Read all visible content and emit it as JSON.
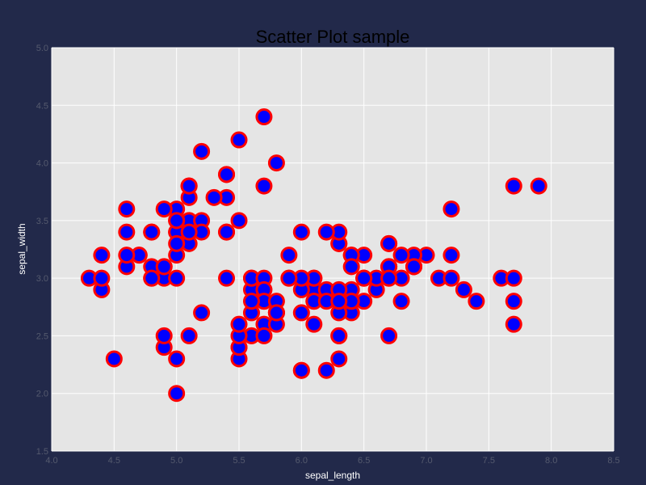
{
  "chart_data": {
    "type": "scatter",
    "title": "Scatter Plot sample",
    "xlabel": "sepal_length",
    "ylabel": "sepal_width",
    "xlim": [
      4.0,
      8.5
    ],
    "ylim": [
      1.5,
      5.0
    ],
    "x_ticks": [
      "4.0",
      "4.5",
      "5.0",
      "5.5",
      "6.0",
      "6.5",
      "7.0",
      "7.5",
      "8.0",
      "8.5"
    ],
    "y_ticks": [
      "1.5",
      "2.0",
      "2.5",
      "3.0",
      "3.5",
      "4.0",
      "4.5",
      "5.0"
    ],
    "grid": true,
    "marker": {
      "fill": "#0000ff",
      "edge": "#ff0000"
    },
    "colors": {
      "figure_bg": "#22294a",
      "plot_bg": "#e5e5e5",
      "grid": "#ffffff",
      "tick_text": "#555a6e",
      "axis_text": "#ffffff"
    },
    "points": [
      [
        5.1,
        3.5
      ],
      [
        4.9,
        3.0
      ],
      [
        4.7,
        3.2
      ],
      [
        4.6,
        3.1
      ],
      [
        5.0,
        3.6
      ],
      [
        5.4,
        3.9
      ],
      [
        4.6,
        3.4
      ],
      [
        5.0,
        3.4
      ],
      [
        4.4,
        2.9
      ],
      [
        4.9,
        3.1
      ],
      [
        5.4,
        3.7
      ],
      [
        4.8,
        3.4
      ],
      [
        4.8,
        3.0
      ],
      [
        4.3,
        3.0
      ],
      [
        5.8,
        4.0
      ],
      [
        5.7,
        4.4
      ],
      [
        5.4,
        3.9
      ],
      [
        5.1,
        3.5
      ],
      [
        5.7,
        3.8
      ],
      [
        5.1,
        3.8
      ],
      [
        5.4,
        3.4
      ],
      [
        5.1,
        3.7
      ],
      [
        4.6,
        3.6
      ],
      [
        5.1,
        3.3
      ],
      [
        4.8,
        3.4
      ],
      [
        5.0,
        3.0
      ],
      [
        5.0,
        3.4
      ],
      [
        5.2,
        3.5
      ],
      [
        5.2,
        3.4
      ],
      [
        4.7,
        3.2
      ],
      [
        4.8,
        3.1
      ],
      [
        5.4,
        3.4
      ],
      [
        5.2,
        4.1
      ],
      [
        5.5,
        4.2
      ],
      [
        4.9,
        3.1
      ],
      [
        5.0,
        3.2
      ],
      [
        5.5,
        3.5
      ],
      [
        4.9,
        3.6
      ],
      [
        4.4,
        3.0
      ],
      [
        5.1,
        3.4
      ],
      [
        5.0,
        3.5
      ],
      [
        4.5,
        2.3
      ],
      [
        4.4,
        3.2
      ],
      [
        5.0,
        3.5
      ],
      [
        5.1,
        3.8
      ],
      [
        4.8,
        3.0
      ],
      [
        5.1,
        3.8
      ],
      [
        4.6,
        3.2
      ],
      [
        5.3,
        3.7
      ],
      [
        5.0,
        3.3
      ],
      [
        7.0,
        3.2
      ],
      [
        6.4,
        3.2
      ],
      [
        6.9,
        3.1
      ],
      [
        5.5,
        2.3
      ],
      [
        6.5,
        2.8
      ],
      [
        5.7,
        2.8
      ],
      [
        6.3,
        3.3
      ],
      [
        4.9,
        2.4
      ],
      [
        6.6,
        2.9
      ],
      [
        5.2,
        2.7
      ],
      [
        5.0,
        2.0
      ],
      [
        5.9,
        3.0
      ],
      [
        6.0,
        2.2
      ],
      [
        6.1,
        2.9
      ],
      [
        5.6,
        2.9
      ],
      [
        6.7,
        3.1
      ],
      [
        5.6,
        3.0
      ],
      [
        5.8,
        2.7
      ],
      [
        6.2,
        2.2
      ],
      [
        5.6,
        2.5
      ],
      [
        5.9,
        3.2
      ],
      [
        6.1,
        2.8
      ],
      [
        6.3,
        2.5
      ],
      [
        6.1,
        2.8
      ],
      [
        6.4,
        2.9
      ],
      [
        6.6,
        3.0
      ],
      [
        6.8,
        2.8
      ],
      [
        6.7,
        3.0
      ],
      [
        6.0,
        2.9
      ],
      [
        5.7,
        2.6
      ],
      [
        5.5,
        2.4
      ],
      [
        5.5,
        2.4
      ],
      [
        5.8,
        2.7
      ],
      [
        6.0,
        2.7
      ],
      [
        5.4,
        3.0
      ],
      [
        6.0,
        3.4
      ],
      [
        6.7,
        3.1
      ],
      [
        6.3,
        2.3
      ],
      [
        5.6,
        3.0
      ],
      [
        5.5,
        2.5
      ],
      [
        5.5,
        2.6
      ],
      [
        6.1,
        3.0
      ],
      [
        5.8,
        2.6
      ],
      [
        5.0,
        2.3
      ],
      [
        5.6,
        2.7
      ],
      [
        5.7,
        3.0
      ],
      [
        5.7,
        2.9
      ],
      [
        6.2,
        2.9
      ],
      [
        5.1,
        2.5
      ],
      [
        5.7,
        2.8
      ],
      [
        6.3,
        3.3
      ],
      [
        5.8,
        2.7
      ],
      [
        7.1,
        3.0
      ],
      [
        6.3,
        2.9
      ],
      [
        6.5,
        3.0
      ],
      [
        7.6,
        3.0
      ],
      [
        4.9,
        2.5
      ],
      [
        7.3,
        2.9
      ],
      [
        6.7,
        2.5
      ],
      [
        7.2,
        3.6
      ],
      [
        6.5,
        3.2
      ],
      [
        6.4,
        2.7
      ],
      [
        6.8,
        3.0
      ],
      [
        5.7,
        2.5
      ],
      [
        5.8,
        2.8
      ],
      [
        6.4,
        3.2
      ],
      [
        6.5,
        3.0
      ],
      [
        7.7,
        3.8
      ],
      [
        7.7,
        2.6
      ],
      [
        6.0,
        2.2
      ],
      [
        6.9,
        3.2
      ],
      [
        5.6,
        2.8
      ],
      [
        7.7,
        2.8
      ],
      [
        6.3,
        2.7
      ],
      [
        6.7,
        3.3
      ],
      [
        7.2,
        3.2
      ],
      [
        6.2,
        2.8
      ],
      [
        6.1,
        3.0
      ],
      [
        6.4,
        2.8
      ],
      [
        7.2,
        3.0
      ],
      [
        7.4,
        2.8
      ],
      [
        7.9,
        3.8
      ],
      [
        6.4,
        2.8
      ],
      [
        6.3,
        2.8
      ],
      [
        6.1,
        2.6
      ],
      [
        7.7,
        3.0
      ],
      [
        6.3,
        3.4
      ],
      [
        6.4,
        3.1
      ],
      [
        6.0,
        3.0
      ],
      [
        6.9,
        3.1
      ],
      [
        6.7,
        3.1
      ],
      [
        6.9,
        3.1
      ],
      [
        5.8,
        2.7
      ],
      [
        6.8,
        3.2
      ],
      [
        6.7,
        3.3
      ],
      [
        6.7,
        3.0
      ],
      [
        6.3,
        2.5
      ],
      [
        6.5,
        3.0
      ],
      [
        6.2,
        3.4
      ],
      [
        5.9,
        3.0
      ]
    ]
  }
}
